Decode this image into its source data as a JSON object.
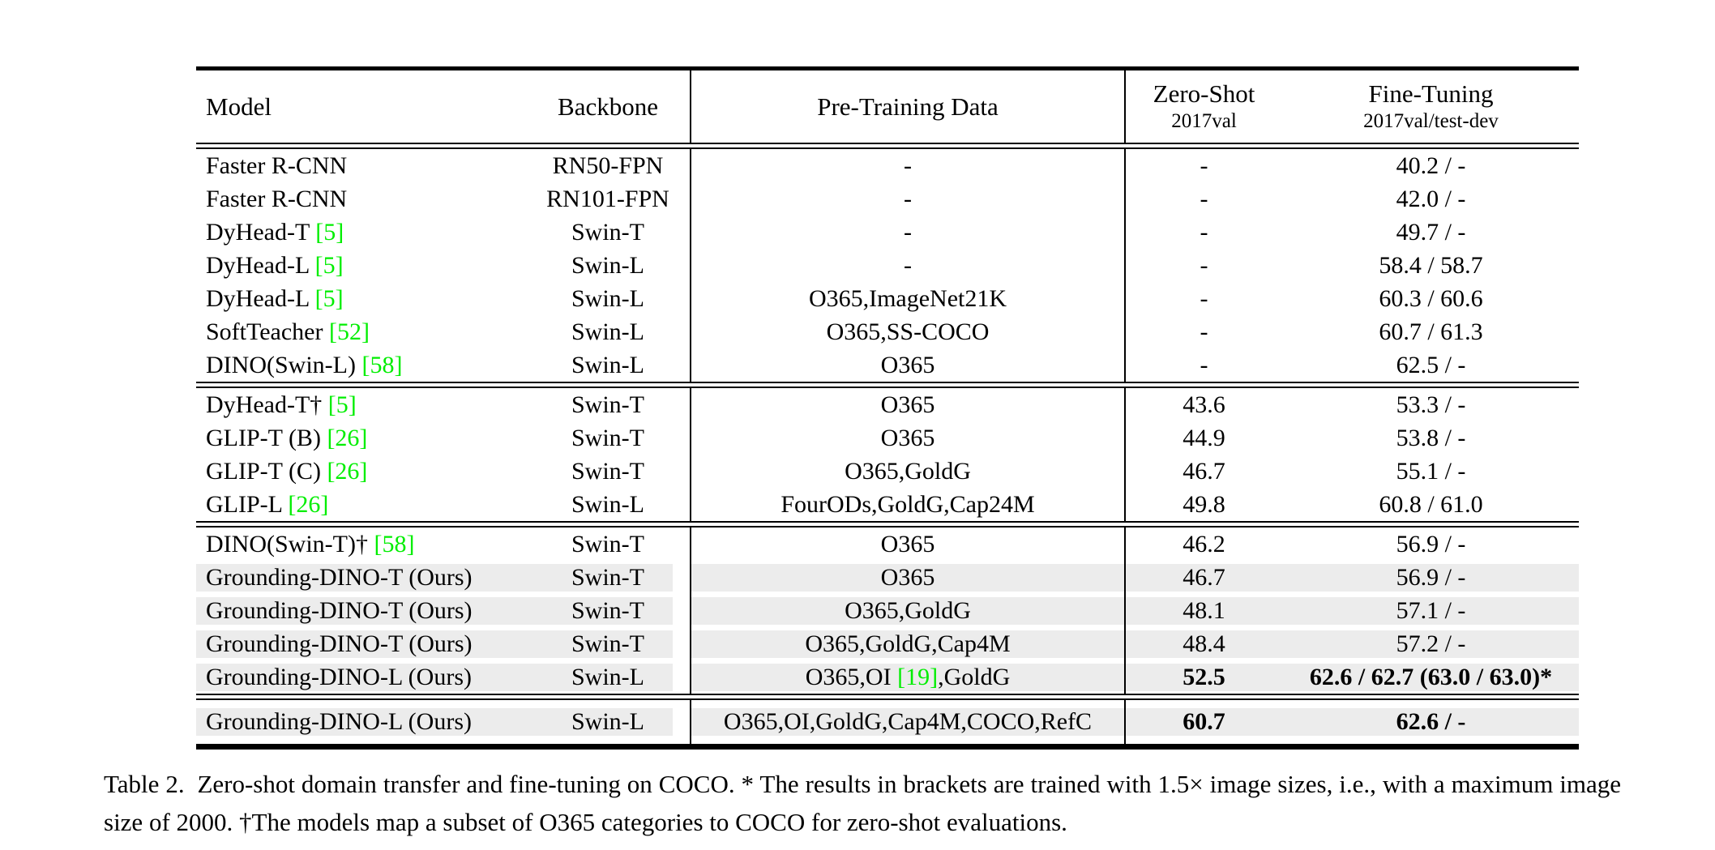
{
  "colors": {
    "citation_green": "#00ee00",
    "row_highlight": "#ececec",
    "rule_black": "#000000"
  },
  "table": {
    "header": {
      "model": "Model",
      "backbone": "Backbone",
      "pretrain": "Pre-Training Data",
      "zeroshot_title": "Zero-Shot",
      "zeroshot_sub": "2017val",
      "finetune_title": "Fine-Tuning",
      "finetune_sub": "2017val/test-dev"
    },
    "blocks": [
      {
        "rows": [
          {
            "m": "Faster R-CNN",
            "mc": "",
            "b": "RN50-FPN",
            "p": "-",
            "pc": "",
            "pp": "",
            "z": "-",
            "f": "40.2 / -",
            "highlight": false,
            "bold": false
          },
          {
            "m": "Faster R-CNN",
            "mc": "",
            "b": "RN101-FPN",
            "p": "-",
            "pc": "",
            "pp": "",
            "z": "-",
            "f": "42.0 / -",
            "highlight": false,
            "bold": false
          },
          {
            "m": "DyHead-T ",
            "mc": "[5]",
            "b": "Swin-T",
            "p": "-",
            "pc": "",
            "pp": "",
            "z": "-",
            "f": "49.7 / -",
            "highlight": false,
            "bold": false
          },
          {
            "m": "DyHead-L ",
            "mc": "[5]",
            "b": "Swin-L",
            "p": "-",
            "pc": "",
            "pp": "",
            "z": "-",
            "f": "58.4 / 58.7",
            "highlight": false,
            "bold": false
          },
          {
            "m": "DyHead-L ",
            "mc": "[5]",
            "b": "Swin-L",
            "p": "O365,ImageNet21K",
            "pc": "",
            "pp": "",
            "z": "-",
            "f": "60.3 / 60.6",
            "highlight": false,
            "bold": false
          },
          {
            "m": "SoftTeacher ",
            "mc": "[52]",
            "b": "Swin-L",
            "p": "O365,SS-COCO",
            "pc": "",
            "pp": "",
            "z": "-",
            "f": "60.7 / 61.3",
            "highlight": false,
            "bold": false
          },
          {
            "m": "DINO(Swin-L) ",
            "mc": "[58]",
            "b": "Swin-L",
            "p": "O365",
            "pc": "",
            "pp": "",
            "z": "-",
            "f": "62.5 / -",
            "highlight": false,
            "bold": false
          }
        ]
      },
      {
        "rows": [
          {
            "m": "DyHead-T† ",
            "mc": "[5]",
            "b": "Swin-T",
            "p": "O365",
            "pc": "",
            "pp": "",
            "z": "43.6",
            "f": "53.3 / -",
            "highlight": false,
            "bold": false
          },
          {
            "m": "GLIP-T (B) ",
            "mc": "[26]",
            "b": "Swin-T",
            "p": "O365",
            "pc": "",
            "pp": "",
            "z": "44.9",
            "f": "53.8 / -",
            "highlight": false,
            "bold": false
          },
          {
            "m": "GLIP-T (C) ",
            "mc": "[26]",
            "b": "Swin-T",
            "p": "O365,GoldG",
            "pc": "",
            "pp": "",
            "z": "46.7",
            "f": "55.1 / -",
            "highlight": false,
            "bold": false
          },
          {
            "m": "GLIP-L ",
            "mc": "[26]",
            "b": "Swin-L",
            "p": "FourODs,GoldG,Cap24M",
            "pc": "",
            "pp": "",
            "z": "49.8",
            "f": "60.8 / 61.0",
            "highlight": false,
            "bold": false
          }
        ]
      },
      {
        "rows": [
          {
            "m": "DINO(Swin-T)† ",
            "mc": "[58]",
            "b": "Swin-T",
            "p": "O365",
            "pc": "",
            "pp": "",
            "z": "46.2",
            "f": "56.9 / -",
            "highlight": false,
            "bold": false
          },
          {
            "m": "Grounding-DINO-T (Ours)",
            "mc": "",
            "b": "Swin-T",
            "p": "O365",
            "pc": "",
            "pp": "",
            "z": "46.7",
            "f": "56.9 / -",
            "highlight": true,
            "bold": false
          },
          {
            "m": "Grounding-DINO-T (Ours)",
            "mc": "",
            "b": "Swin-T",
            "p": "O365,GoldG",
            "pc": "",
            "pp": "",
            "z": "48.1",
            "f": "57.1 / -",
            "highlight": true,
            "bold": false
          },
          {
            "m": "Grounding-DINO-T (Ours)",
            "mc": "",
            "b": "Swin-T",
            "p": "O365,GoldG,Cap4M",
            "pc": "",
            "pp": "",
            "z": "48.4",
            "f": "57.2 / -",
            "highlight": true,
            "bold": false
          },
          {
            "m": "Grounding-DINO-L (Ours)",
            "mc": "",
            "b": "Swin-L",
            "p": "O365,OI ",
            "pc": "[19]",
            "pp": ",GoldG",
            "z": "52.5",
            "f": "62.6 / 62.7 (63.0 / 63.0)*",
            "highlight": true,
            "bold": true
          }
        ]
      },
      {
        "rows": [
          {
            "m": "Grounding-DINO-L (Ours)",
            "mc": "",
            "b": "Swin-L",
            "p": "O365,OI,GoldG,Cap4M,COCO,RefC",
            "pc": "",
            "pp": "",
            "z": "60.7",
            "f": "62.6 / -",
            "highlight": true,
            "bold": true
          }
        ]
      }
    ]
  },
  "caption": {
    "text": "Table 2.  Zero-shot domain transfer and fine-tuning on COCO. * The results in brackets are trained with 1.5× image sizes, i.e., with a maximum image size of 2000. †The models map a subset of O365 categories to COCO for zero-shot evaluations."
  }
}
